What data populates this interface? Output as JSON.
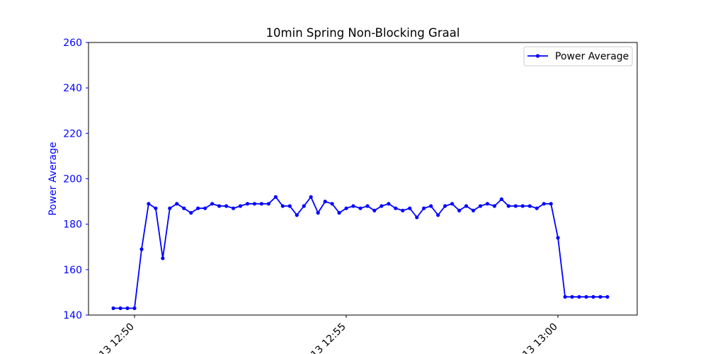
{
  "chart_data": {
    "type": "line",
    "title": "10min Spring Non-Blocking Graal",
    "xlabel": "",
    "ylabel": "Power Average",
    "ylim": [
      140,
      260
    ],
    "yticks": [
      140,
      160,
      180,
      200,
      220,
      240,
      260
    ],
    "xticks": [
      {
        "label": "13 12:50",
        "minutes": 0
      },
      {
        "label": "13 12:55",
        "minutes": 5
      },
      {
        "label": "13 13:00",
        "minutes": 10
      }
    ],
    "x_step_minutes": 0.1667,
    "x_start_minutes": -0.5,
    "legend": {
      "position": "top-right"
    },
    "grid": false,
    "colors": {
      "series": "#0000ff",
      "ylabel": "#0000ff"
    },
    "series": [
      {
        "name": "Power Average",
        "values": [
          143,
          143,
          143,
          143,
          169,
          189,
          187,
          165,
          187,
          189,
          187,
          185,
          187,
          187,
          189,
          188,
          188,
          187,
          188,
          189,
          189,
          189,
          189,
          192,
          188,
          188,
          184,
          188,
          192,
          185,
          190,
          189,
          185,
          187,
          188,
          187,
          188,
          186,
          188,
          189,
          187,
          186,
          187,
          183,
          187,
          188,
          184,
          188,
          189,
          186,
          188,
          186,
          188,
          189,
          188,
          191,
          188,
          188,
          188,
          188,
          187,
          189,
          189,
          174,
          148,
          148,
          148,
          148,
          148,
          148,
          148
        ]
      }
    ]
  }
}
